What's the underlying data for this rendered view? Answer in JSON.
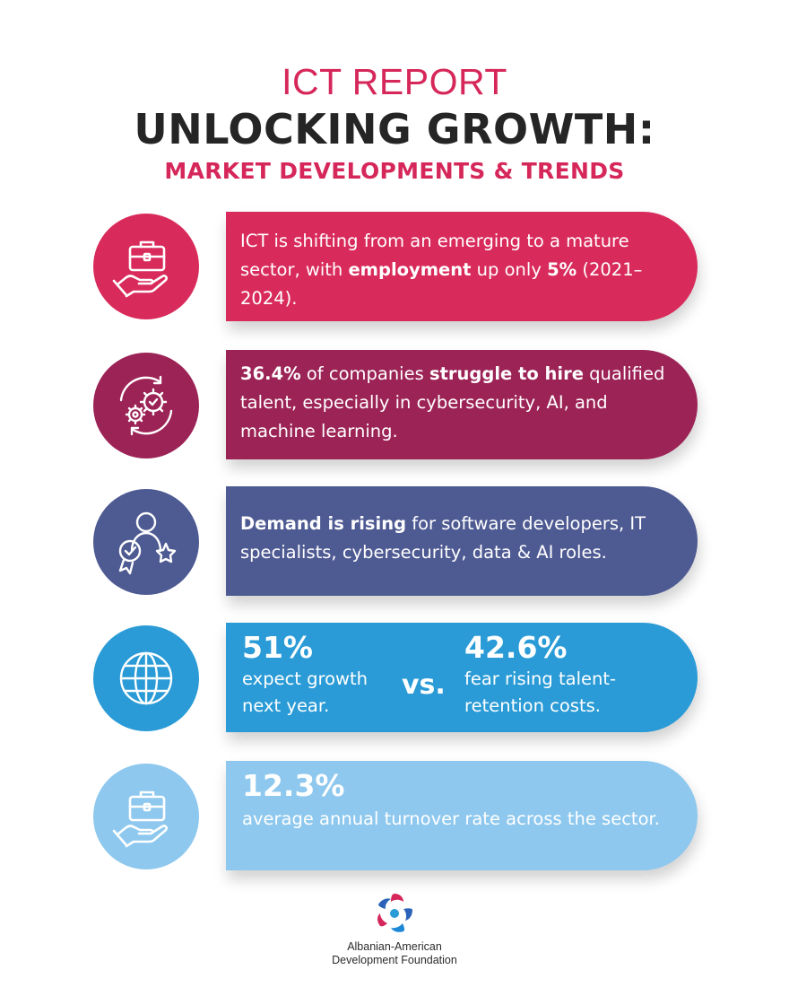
{
  "header": {
    "kicker": "ICT REPORT",
    "title": "UNLOCKING GROWTH:",
    "subtitle": "MARKET DEVELOPMENTS & TRENDS"
  },
  "colors": {
    "row1": "#d92b5b",
    "row2": "#9c2356",
    "row3": "#4e5a92",
    "row4": "#2a9bd6",
    "row5": "#8ec8ee",
    "accent": "#d6275a"
  },
  "rows": [
    {
      "icon": "briefcase-hand-icon",
      "parts": [
        {
          "text": "ICT is shifting from an emerging to a mature sector, with ",
          "bold": false
        },
        {
          "text": "employment",
          "bold": true
        },
        {
          "text": " up only ",
          "bold": false
        },
        {
          "text": "5%",
          "bold": true
        },
        {
          "text": " (2021–2024).",
          "bold": false
        }
      ]
    },
    {
      "icon": "gears-cycle-icon",
      "parts": [
        {
          "text": "36.4%",
          "bold": true
        },
        {
          "text": " of companies ",
          "bold": false
        },
        {
          "text": "struggle to hire",
          "bold": true
        },
        {
          "text": " qualified talent, especially in cybersecurity, AI, and machine learning.",
          "bold": false
        }
      ]
    },
    {
      "icon": "person-badge-star-icon",
      "parts": [
        {
          "text": "Demand is rising",
          "bold": true
        },
        {
          "text": " for software developers, IT specialists, cybersecurity, data & AI roles.",
          "bold": false
        }
      ]
    },
    {
      "icon": "globe-icon",
      "left_value": "51%",
      "left_label": "expect growth next year.",
      "vs": "vs.",
      "right_value": "42.6%",
      "right_label": "fear rising talent-retention costs."
    },
    {
      "icon": "briefcase-hand-icon",
      "value": "12.3%",
      "label": "average annual turnover rate across the sector."
    }
  ],
  "footer": {
    "org_line1": "Albanian-American",
    "org_line2": "Development Foundation"
  }
}
